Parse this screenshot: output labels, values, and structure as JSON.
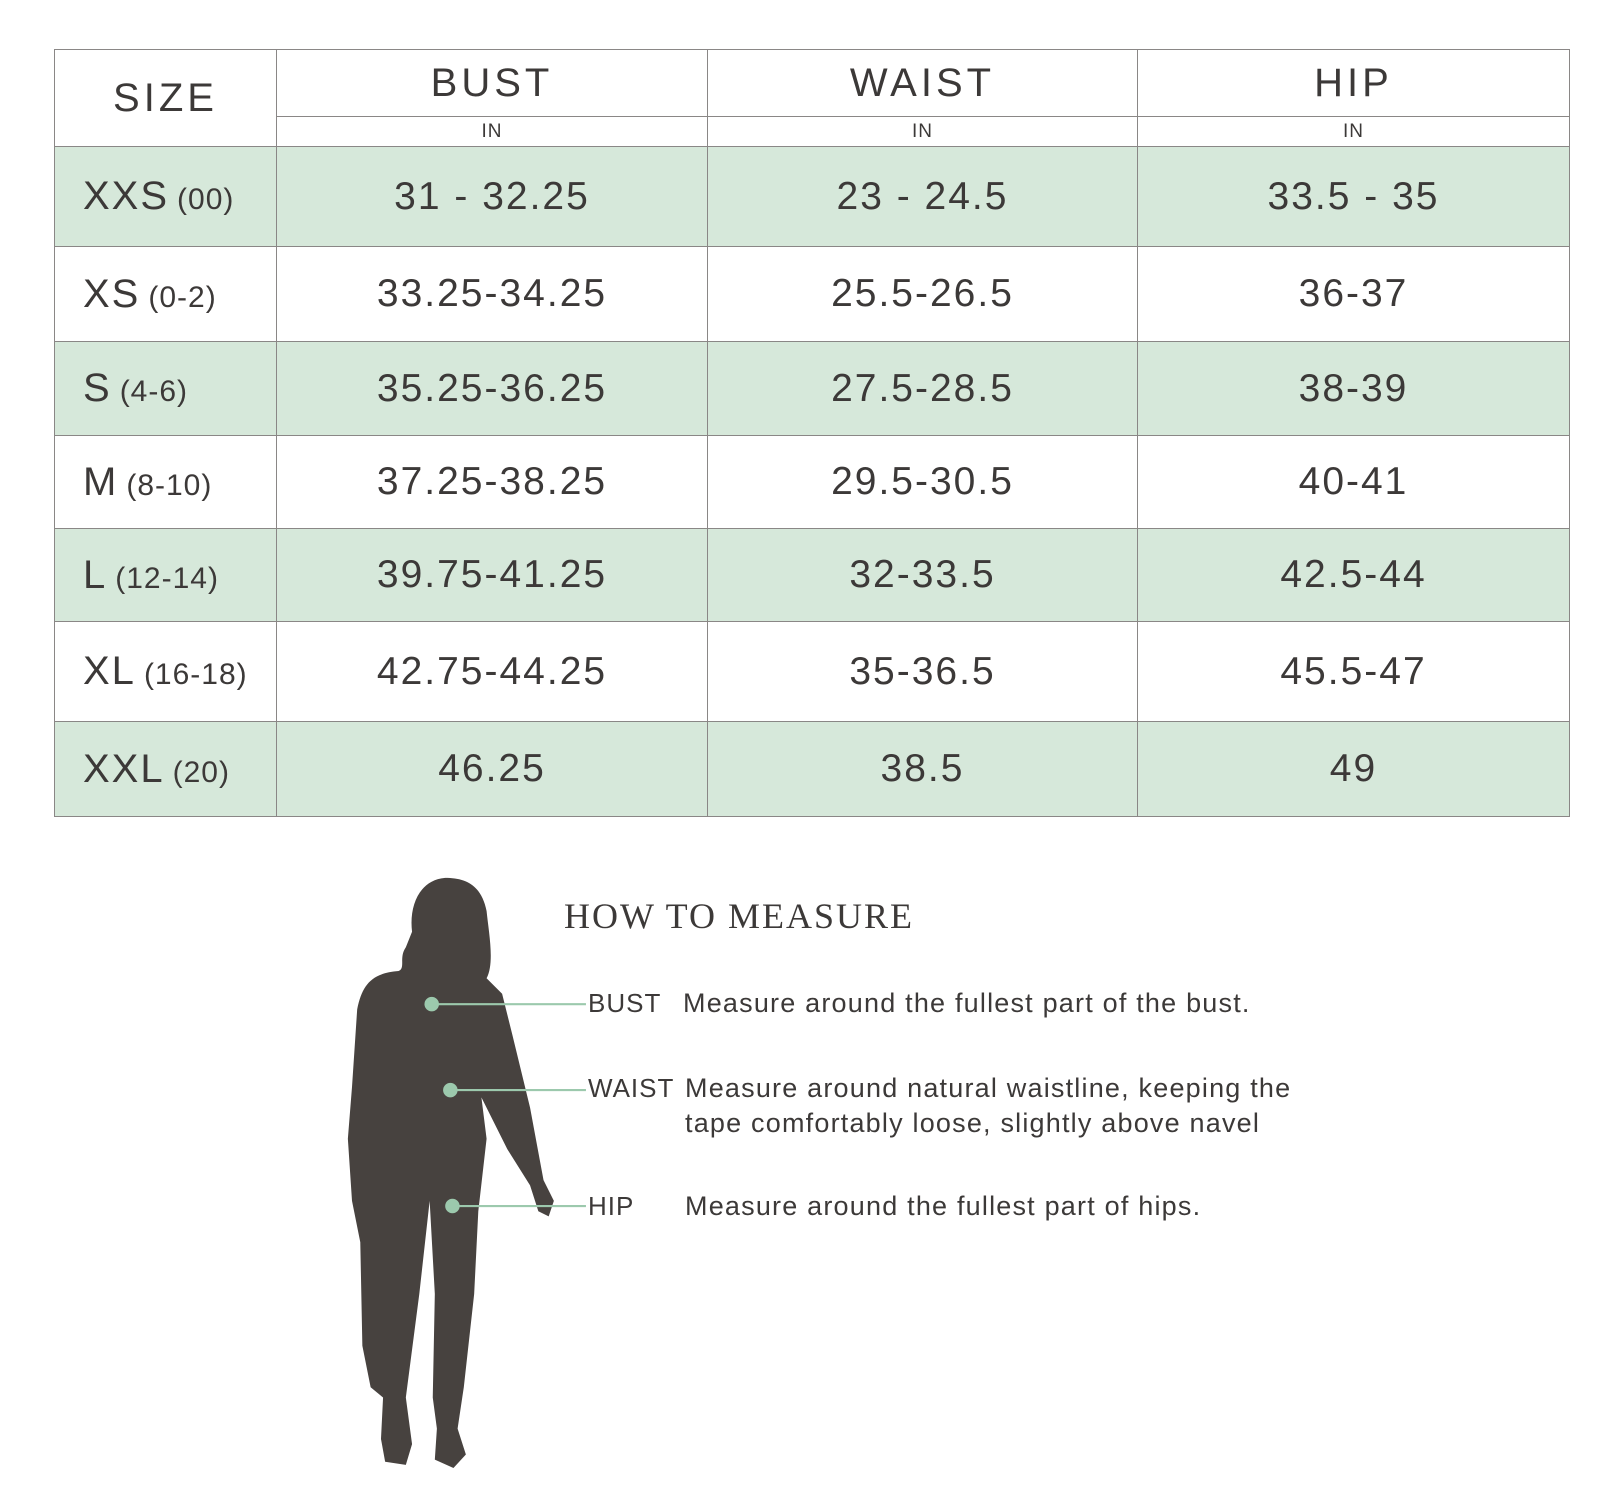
{
  "table": {
    "size_header": "SIZE",
    "columns": [
      {
        "label": "BUST",
        "unit": "IN"
      },
      {
        "label": "WAIST",
        "unit": "IN"
      },
      {
        "label": "HIP",
        "unit": "IN"
      }
    ],
    "rows": [
      {
        "size": "XXS",
        "numeric": "(00)",
        "bust": "31 - 32.25",
        "waist": "23 - 24.5",
        "hip": "33.5 - 35"
      },
      {
        "size": "XS",
        "numeric": "(0-2)",
        "bust": "33.25-34.25",
        "waist": "25.5-26.5",
        "hip": "36-37"
      },
      {
        "size": "S",
        "numeric": "(4-6)",
        "bust": "35.25-36.25",
        "waist": "27.5-28.5",
        "hip": "38-39"
      },
      {
        "size": "M",
        "numeric": "(8-10)",
        "bust": "37.25-38.25",
        "waist": "29.5-30.5",
        "hip": "40-41"
      },
      {
        "size": "L",
        "numeric": "(12-14)",
        "bust": "39.75-41.25",
        "waist": "32-33.5",
        "hip": "42.5-44"
      },
      {
        "size": "XL",
        "numeric": "(16-18)",
        "bust": "42.75-44.25",
        "waist": "35-36.5",
        "hip": "45.5-47"
      },
      {
        "size": "XXL",
        "numeric": "(20)",
        "bust": "46.25",
        "waist": "38.5",
        "hip": "49"
      }
    ]
  },
  "how_to_measure": {
    "title": "HOW TO MEASURE",
    "items": [
      {
        "label": "BUST",
        "text": "Measure around the fullest part of the bust."
      },
      {
        "label": "WAIST",
        "text": "Measure around natural waistline, keeping the",
        "text2": "tape comfortably loose, slightly above navel"
      },
      {
        "label": "HIP",
        "text": "Measure around the fullest part of hips."
      }
    ]
  },
  "colors": {
    "stripe": "#d6e8da",
    "text": "#3c3938",
    "silhouette": "#47423f",
    "marker": "#9cc9ad"
  }
}
